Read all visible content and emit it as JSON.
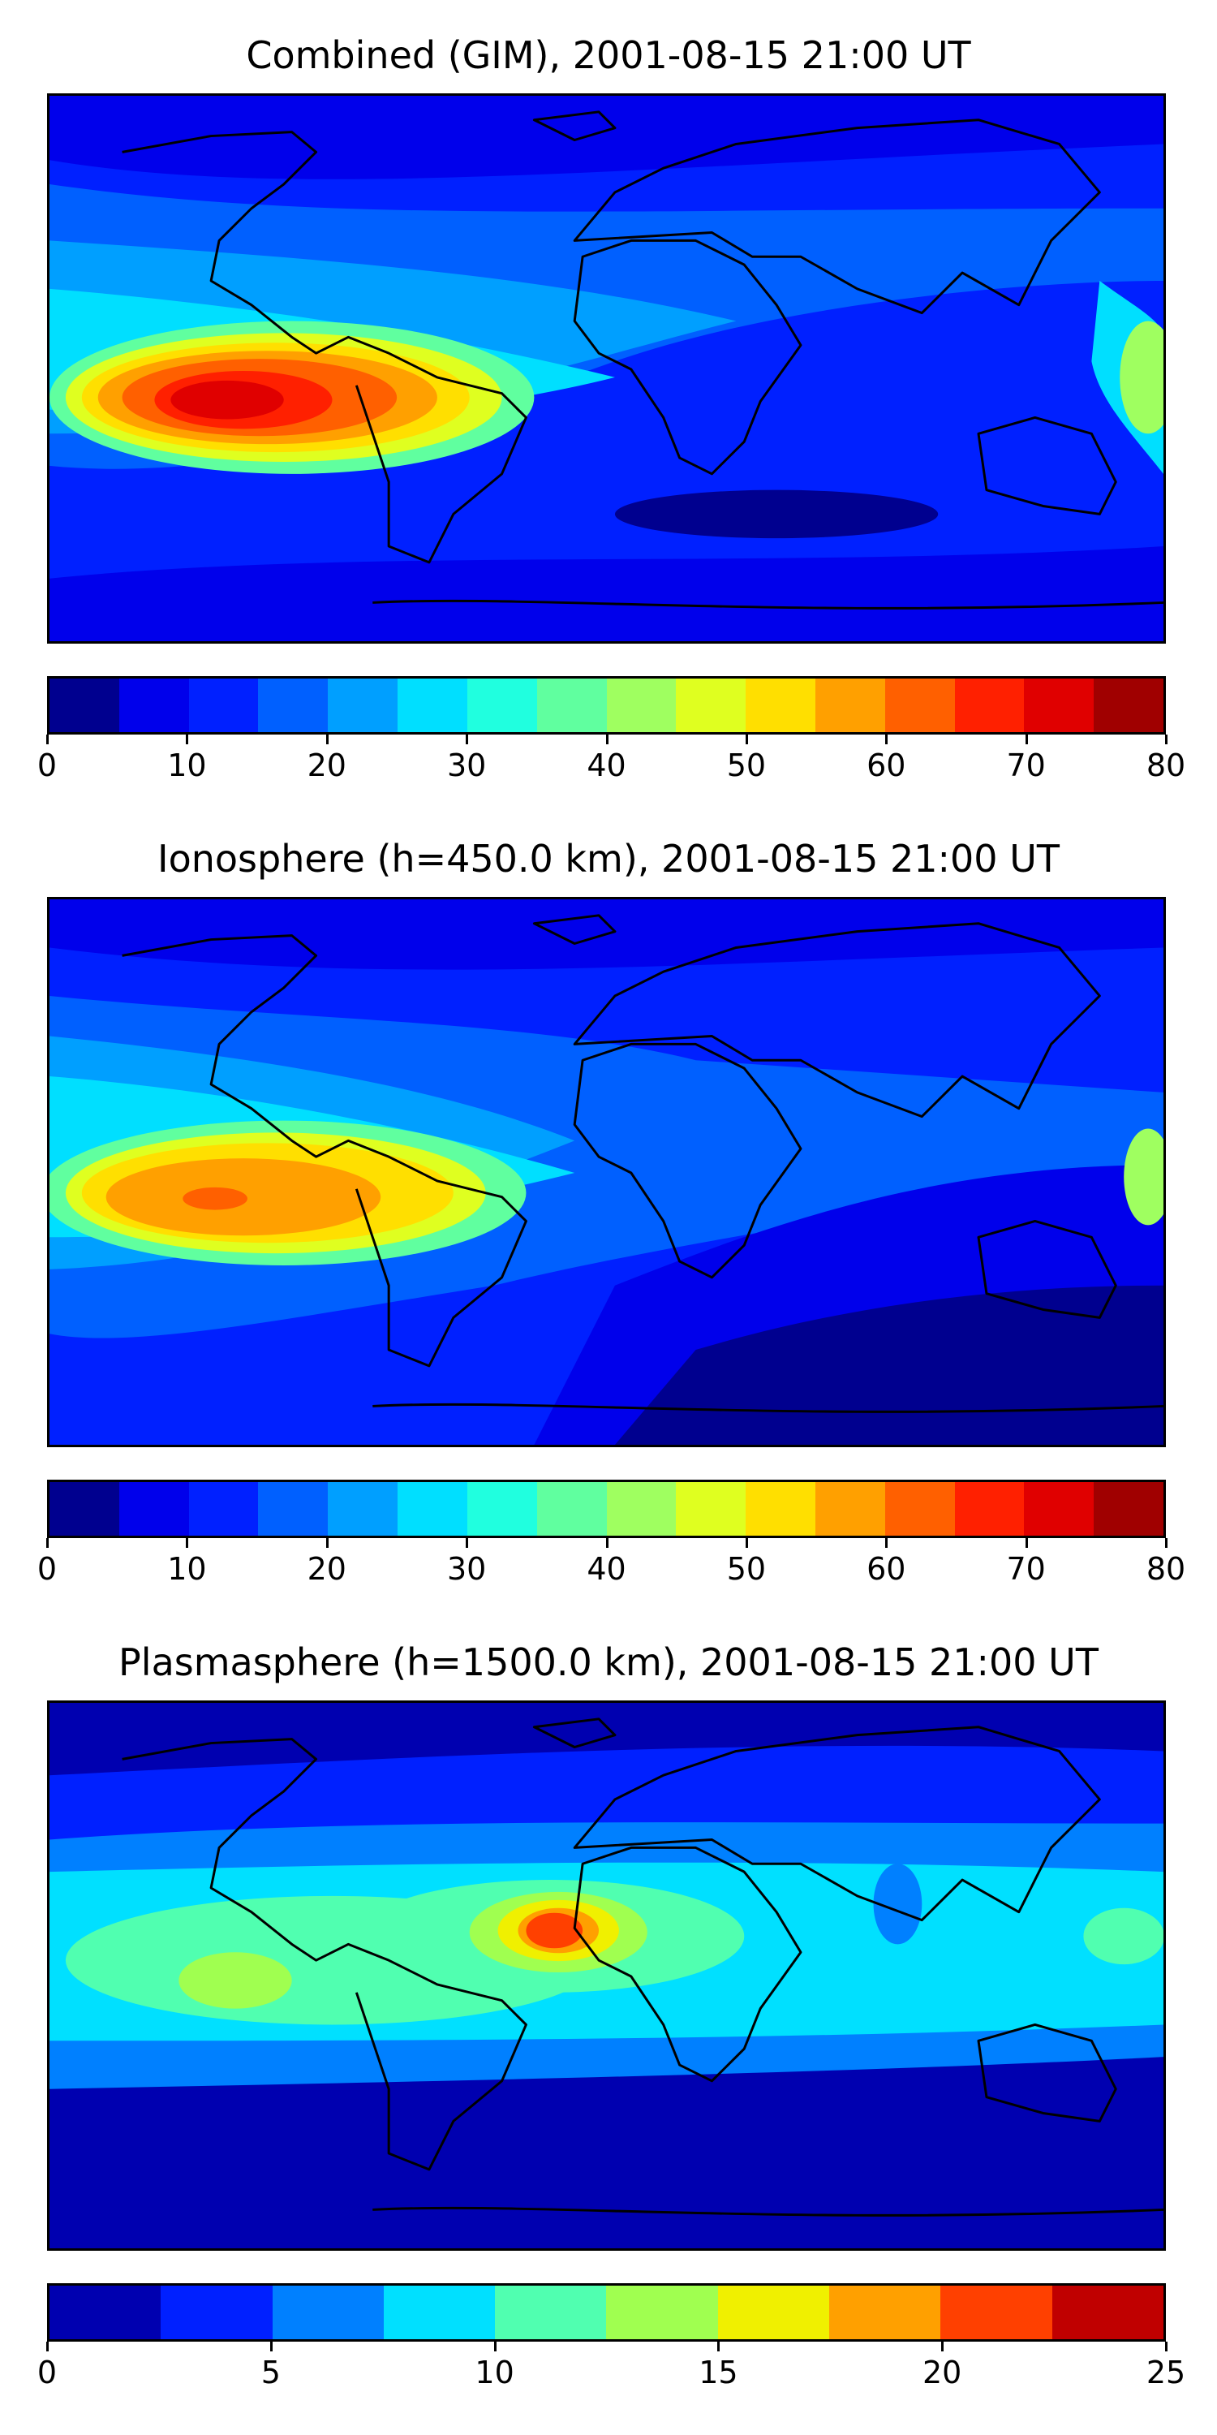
{
  "panels": [
    {
      "title": "Combined (GIM), 2001-08-15 21:00 UT",
      "colorbar": {
        "colors": [
          "#00008f",
          "#0000eb",
          "#0020ff",
          "#0060ff",
          "#009fff",
          "#00dfff",
          "#20ffdf",
          "#60ff9f",
          "#9fff60",
          "#dfff20",
          "#ffdf00",
          "#ffa000",
          "#ff6000",
          "#ff2000",
          "#e00000",
          "#a00000"
        ],
        "ticks": [
          "0",
          "10",
          "20",
          "30",
          "40",
          "50",
          "60",
          "70",
          "80"
        ],
        "min": 0,
        "max": 80
      }
    },
    {
      "title": "Ionosphere  (h=450.0 km), 2001-08-15 21:00 UT",
      "colorbar": {
        "colors": [
          "#00008f",
          "#0000eb",
          "#0020ff",
          "#0060ff",
          "#009fff",
          "#00dfff",
          "#20ffdf",
          "#60ff9f",
          "#9fff60",
          "#dfff20",
          "#ffdf00",
          "#ffa000",
          "#ff6000",
          "#ff2000",
          "#e00000",
          "#a00000"
        ],
        "ticks": [
          "0",
          "10",
          "20",
          "30",
          "40",
          "50",
          "60",
          "70",
          "80"
        ],
        "min": 0,
        "max": 80
      }
    },
    {
      "title": "Plasmasphere (h=1500.0 km), 2001-08-15 21:00 UT",
      "colorbar": {
        "colors": [
          "#0000b0",
          "#0020ff",
          "#0080ff",
          "#00e0ff",
          "#50ffb0",
          "#a0ff50",
          "#f0f000",
          "#ffa000",
          "#ff4000",
          "#c00000"
        ],
        "ticks": [
          "0",
          "5",
          "10",
          "15",
          "20",
          "25"
        ],
        "min": 0,
        "max": 25
      }
    }
  ]
}
